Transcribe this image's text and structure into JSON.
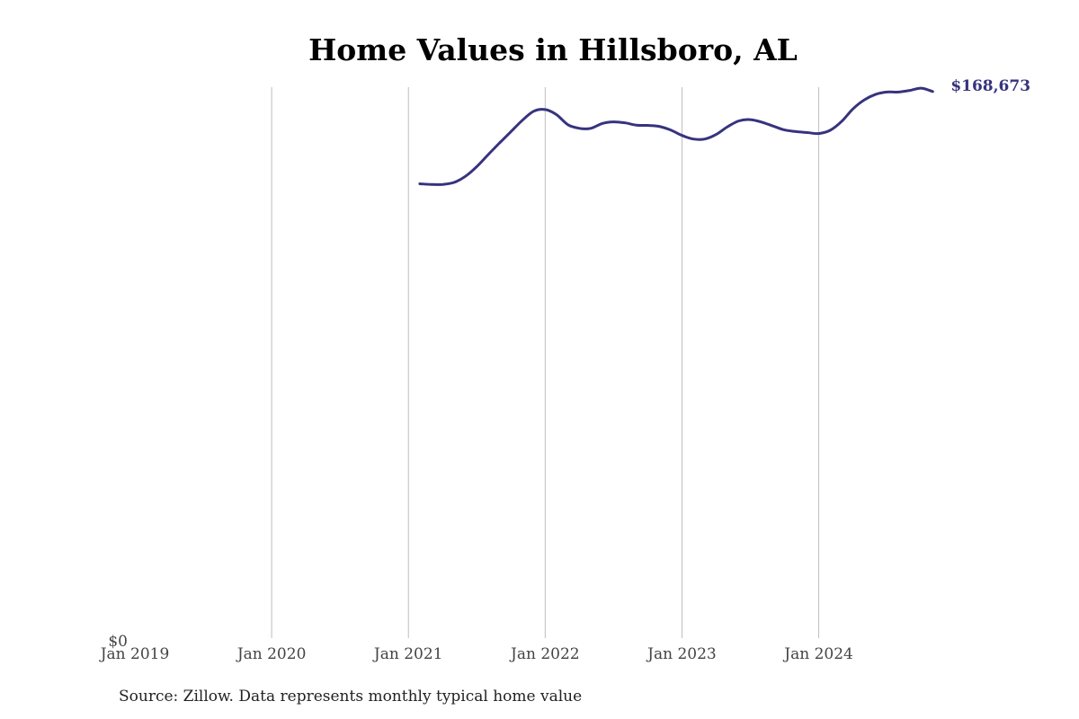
{
  "chart_data": {
    "type": "line",
    "title": "Home Values in Hillsboro, AL",
    "source": "Source: Zillow. Data represents monthly typical home value",
    "xlabel": "",
    "ylabel": "",
    "x_ticks": [
      "Jan 2019",
      "Jan 2020",
      "Jan 2021",
      "Jan 2022",
      "Jan 2023",
      "Jan 2024"
    ],
    "y_ticks": [
      "$0"
    ],
    "xlim": [
      "2019-01",
      "2024-12"
    ],
    "ylim": [
      0,
      170000
    ],
    "grid": "vertical",
    "line_color": "#36337e",
    "end_label": "$168,673",
    "series": [
      {
        "x": [
          "2021-02",
          "2021-03",
          "2021-04",
          "2021-05",
          "2021-06",
          "2021-07",
          "2021-08",
          "2021-09",
          "2021-10",
          "2021-11",
          "2021-12",
          "2022-01",
          "2022-02",
          "2022-03",
          "2022-04",
          "2022-05",
          "2022-06",
          "2022-07",
          "2022-08",
          "2022-09",
          "2022-10",
          "2022-11",
          "2022-12",
          "2023-01",
          "2023-02",
          "2023-03",
          "2023-04",
          "2023-05",
          "2023-06",
          "2023-07",
          "2023-08",
          "2023-09",
          "2023-10",
          "2023-11",
          "2023-12",
          "2024-01",
          "2024-02",
          "2024-03",
          "2024-04",
          "2024-05",
          "2024-06",
          "2024-07",
          "2024-08",
          "2024-09",
          "2024-10",
          "2024-11"
        ],
        "values": [
          140200,
          140000,
          140000,
          140600,
          142500,
          145500,
          149200,
          152800,
          156300,
          159800,
          162600,
          163100,
          161500,
          158400,
          157300,
          157300,
          158800,
          159300,
          159000,
          158300,
          158200,
          157900,
          156800,
          155100,
          154000,
          154000,
          155400,
          157800,
          159600,
          160000,
          159200,
          158000,
          156800,
          156300,
          156000,
          155700,
          156700,
          159400,
          163300,
          166100,
          167800,
          168500,
          168500,
          169000,
          169700,
          168673
        ]
      }
    ]
  }
}
